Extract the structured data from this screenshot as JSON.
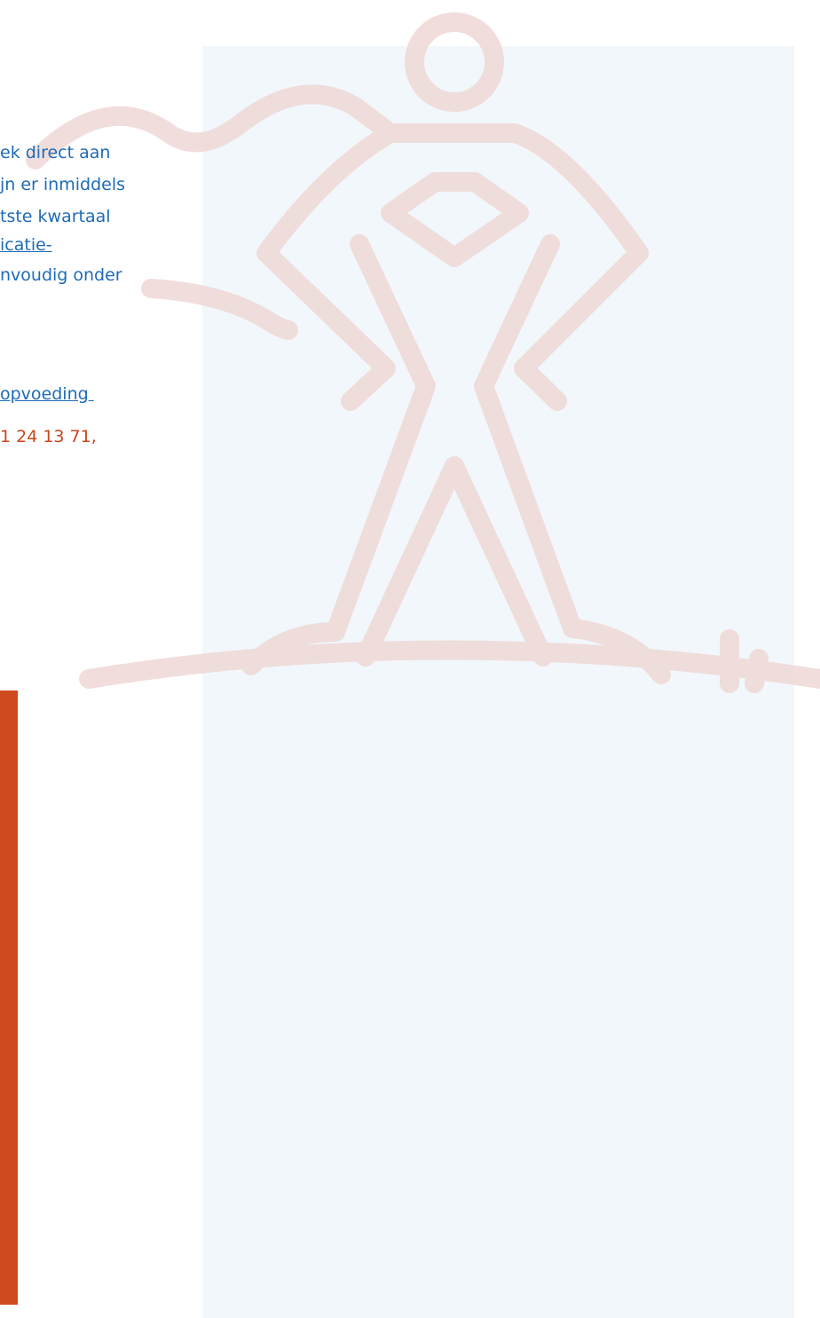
{
  "article": {
    "lines": [
      "ek direct aan",
      "jn er inmiddels",
      "tste kwartaal",
      "icatie-",
      "nvoudig onder"
    ],
    "link": "opvoeding ",
    "phone": "1 24 13 71,"
  }
}
